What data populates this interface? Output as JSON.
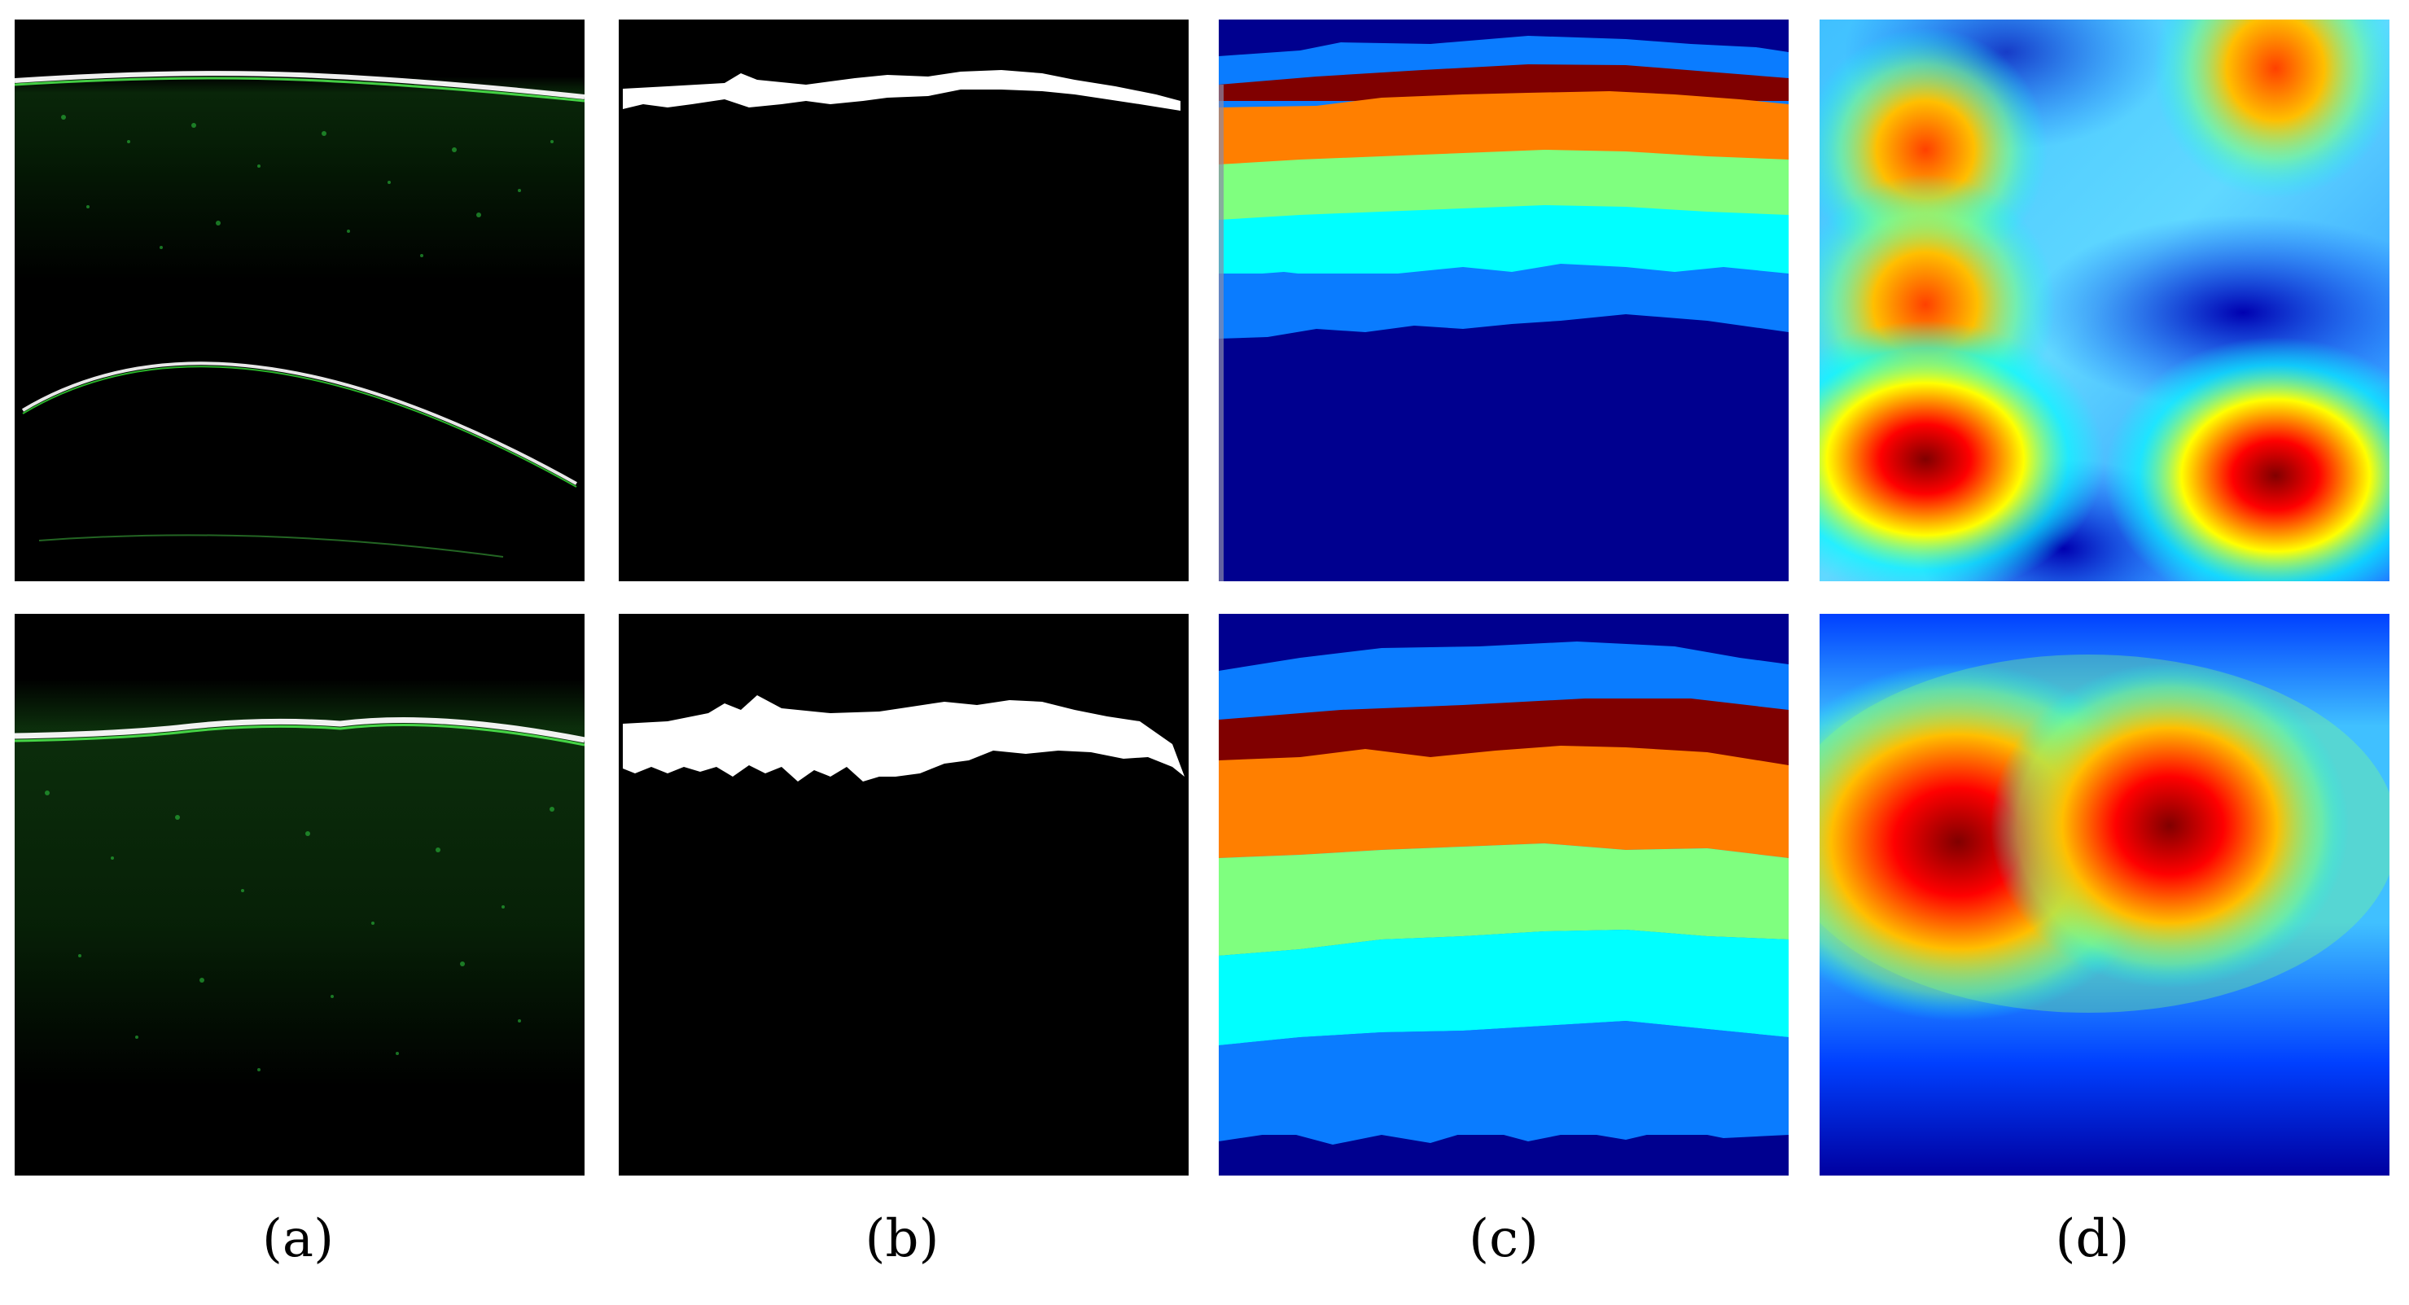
{
  "captions": {
    "a": "(a)",
    "b": "(b)",
    "c": "(c)",
    "d": "(d)"
  },
  "colors": {
    "background": "#ffffff",
    "oct_black": "#000000",
    "oct_speckle": "#2ecc40",
    "mask_white": "#ffffff",
    "seg_navy": "#00008f",
    "seg_blue": "#0a7cff",
    "seg_darkred": "#800000",
    "seg_orange": "#ff7f00",
    "seg_lightgreen": "#7fff7f",
    "seg_cyan": "#00ffff"
  }
}
